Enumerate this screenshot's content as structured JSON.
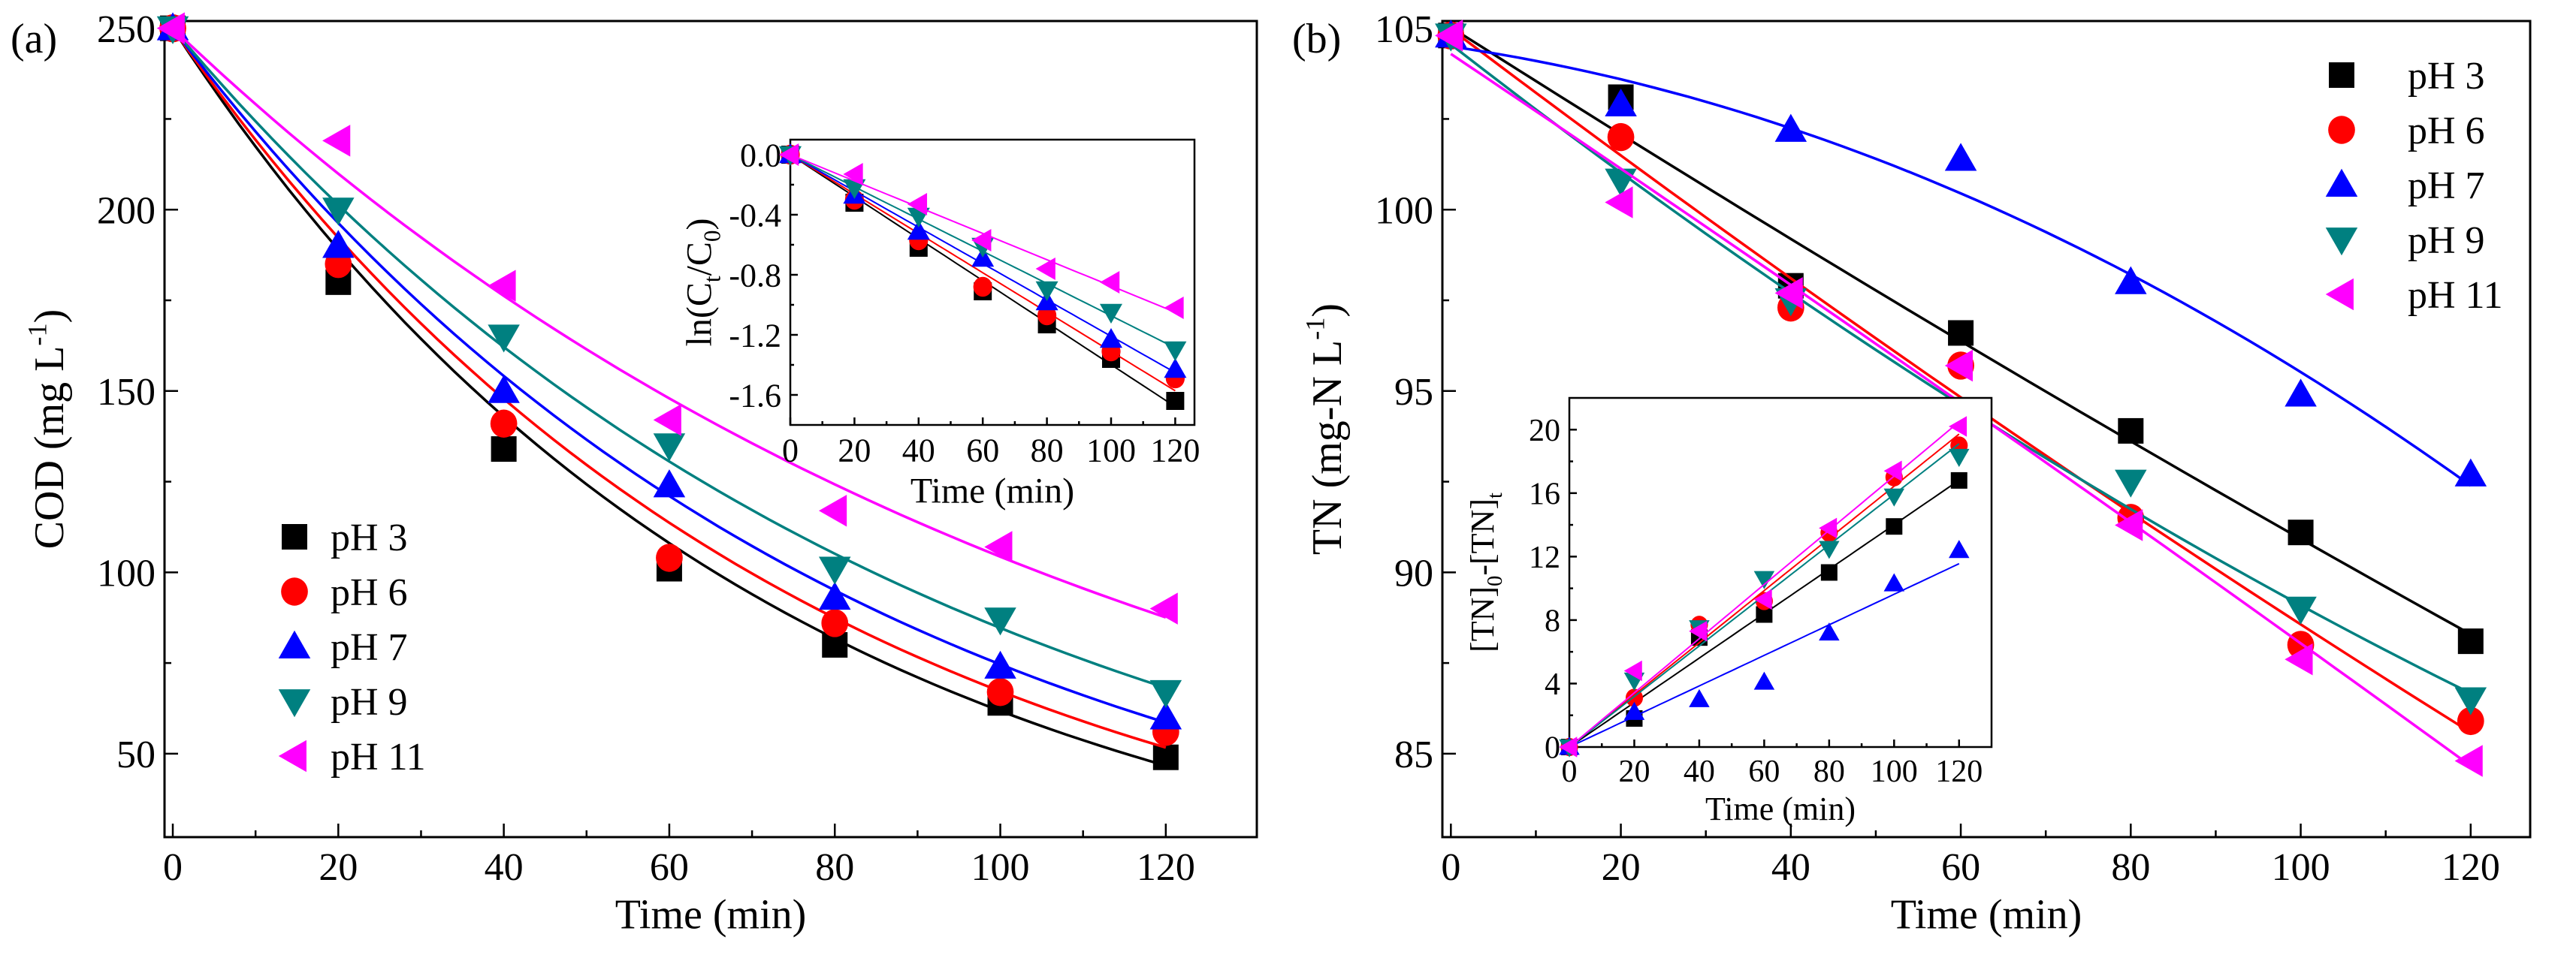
{
  "colors": {
    "pH 3": "#000000",
    "pH 6": "#ff0000",
    "pH 7": "#0000ff",
    "pH 9": "#008080",
    "pH 11": "#ff00ff"
  },
  "markers": {
    "pH 3": "square",
    "pH 6": "circle",
    "pH 7": "triangle-up",
    "pH 9": "triangle-down",
    "pH 11": "triangle-left"
  },
  "chart_data": [
    {
      "id": "a-main",
      "panel_label": "(a)",
      "type": "scatter",
      "xlabel": "Time (min)",
      "ylabel": "COD (mg L",
      "ylabel_sup": "-1",
      "ylabel_end": ")",
      "xlim": [
        -1,
        131
      ],
      "ylim": [
        27,
        252
      ],
      "xticks": [
        0,
        20,
        40,
        60,
        80,
        100,
        120
      ],
      "yticks": [
        50,
        100,
        150,
        200,
        250
      ],
      "fit": "exponential",
      "legend": "bottom-left",
      "x": [
        0,
        20,
        40,
        60,
        80,
        100,
        120
      ],
      "series": [
        {
          "name": "pH 3",
          "values": [
            250,
            180,
            134,
            101,
            80,
            64,
            49
          ]
        },
        {
          "name": "pH 6",
          "values": [
            250,
            185,
            141,
            104,
            86,
            67,
            56
          ]
        },
        {
          "name": "pH 7",
          "values": [
            250,
            190,
            150,
            124,
            93,
            74,
            60
          ]
        },
        {
          "name": "pH 9",
          "values": [
            250,
            200,
            165,
            135,
            101,
            87,
            67
          ]
        },
        {
          "name": "pH 11",
          "values": [
            250,
            219,
            179,
            142,
            117,
            107,
            90
          ]
        }
      ]
    },
    {
      "id": "a-inset",
      "type": "scatter",
      "xlabel": "Time (min)",
      "ylabel": "ln(C",
      "ylabel_sub1": "t",
      "ylabel_mid": "/C",
      "ylabel_sub2": "0",
      "ylabel_end": ")",
      "xlim": [
        0,
        126
      ],
      "ylim": [
        -1.8,
        0.1
      ],
      "xticks": [
        0,
        20,
        40,
        60,
        80,
        100,
        120
      ],
      "yticks": [
        0.0,
        -0.4,
        -0.8,
        -1.2,
        -1.6
      ],
      "ytick_labels": [
        "0.0",
        "-0.4",
        "-0.8",
        "-1.2",
        "-1.6"
      ],
      "fit": "linear-origin",
      "x": [
        0,
        20,
        40,
        60,
        80,
        100,
        120
      ],
      "series": [
        {
          "name": "pH 3",
          "values": [
            0,
            -0.32,
            -0.62,
            -0.91,
            -1.13,
            -1.36,
            -1.64
          ]
        },
        {
          "name": "pH 6",
          "values": [
            0,
            -0.3,
            -0.57,
            -0.88,
            -1.07,
            -1.31,
            -1.49
          ]
        },
        {
          "name": "pH 7",
          "values": [
            0,
            -0.27,
            -0.51,
            -0.69,
            -0.98,
            -1.23,
            -1.43
          ]
        },
        {
          "name": "pH 9",
          "values": [
            0,
            -0.22,
            -0.41,
            -0.61,
            -0.9,
            -1.05,
            -1.3
          ]
        },
        {
          "name": "pH 11",
          "values": [
            0,
            -0.13,
            -0.33,
            -0.57,
            -0.76,
            -0.85,
            -1.02
          ]
        }
      ]
    },
    {
      "id": "b-main",
      "panel_label": "(b)",
      "type": "scatter",
      "xlabel": "Time (min)",
      "ylabel": "TN (mg-N L",
      "ylabel_sup": "-1",
      "ylabel_end": ")",
      "xlim": [
        -1,
        127
      ],
      "ylim": [
        82.7,
        105.2
      ],
      "xticks": [
        0,
        20,
        40,
        60,
        80,
        100,
        120
      ],
      "yticks": [
        85,
        90,
        95,
        100,
        105
      ],
      "fit": "quadratic",
      "legend": "top-right",
      "x": [
        0,
        20,
        40,
        60,
        80,
        100,
        120
      ],
      "series": [
        {
          "name": "pH 3",
          "values": [
            104.8,
            103.1,
            97.9,
            96.6,
            93.9,
            91.1,
            88.1
          ]
        },
        {
          "name": "pH 6",
          "values": [
            104.8,
            102.0,
            97.3,
            95.7,
            91.5,
            88.0,
            85.9
          ]
        },
        {
          "name": "pH 7",
          "values": [
            104.8,
            102.9,
            102.2,
            101.4,
            98.0,
            94.9,
            92.7
          ]
        },
        {
          "name": "pH 9",
          "values": [
            104.8,
            100.8,
            97.5,
            94.3,
            92.5,
            89.0,
            86.5
          ]
        },
        {
          "name": "pH 11",
          "values": [
            104.8,
            100.2,
            97.7,
            95.7,
            91.3,
            87.6,
            84.8
          ]
        }
      ]
    },
    {
      "id": "b-inset",
      "type": "scatter",
      "xlabel": "Time (min)",
      "ylabel": "[TN]",
      "ylabel_sub1": "0",
      "ylabel_mid": "-[TN]",
      "ylabel_sub2": "t",
      "ylabel_end": "",
      "xlim": [
        0,
        130
      ],
      "ylim": [
        0,
        22
      ],
      "xticks": [
        0,
        20,
        40,
        60,
        80,
        100,
        120
      ],
      "yticks": [
        0,
        4,
        8,
        12,
        16,
        20
      ],
      "fit": "linear-origin",
      "x": [
        0,
        20,
        40,
        60,
        80,
        100,
        120
      ],
      "series": [
        {
          "name": "pH 3",
          "values": [
            0,
            1.8,
            6.9,
            8.35,
            11.0,
            13.9,
            16.8
          ]
        },
        {
          "name": "pH 6",
          "values": [
            0,
            3.1,
            7.7,
            9.2,
            13.5,
            17.0,
            19.0
          ]
        },
        {
          "name": "pH 7",
          "values": [
            0,
            2.2,
            3.0,
            4.1,
            7.2,
            10.3,
            12.4
          ]
        },
        {
          "name": "pH 9",
          "values": [
            0,
            4.2,
            7.5,
            10.6,
            12.5,
            15.8,
            18.3
          ]
        },
        {
          "name": "pH 11",
          "values": [
            0,
            4.8,
            7.3,
            9.3,
            13.8,
            17.4,
            20.2
          ]
        }
      ]
    }
  ]
}
